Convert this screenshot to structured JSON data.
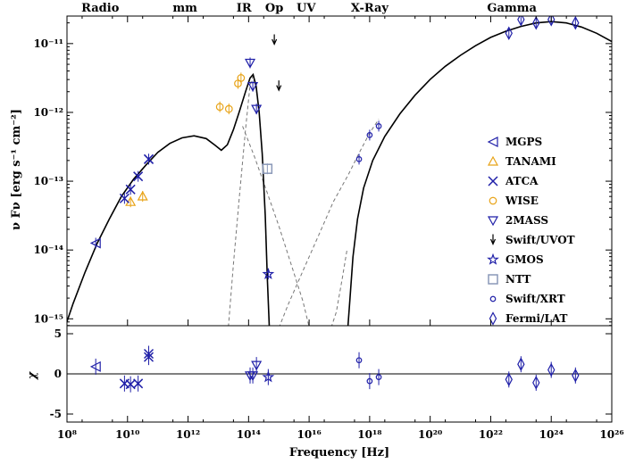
{
  "chart_data": {
    "type": "scatter",
    "title": "",
    "bands": [
      {
        "label": "Radio",
        "log_nu": 9.1
      },
      {
        "label": "mm",
        "log_nu": 11.9
      },
      {
        "label": "IR",
        "log_nu": 13.85
      },
      {
        "label": "Op",
        "log_nu": 14.85
      },
      {
        "label": "UV",
        "log_nu": 15.9
      },
      {
        "label": "X-Ray",
        "log_nu": 18.0
      },
      {
        "label": "Gamma",
        "log_nu": 22.7
      }
    ],
    "xlabel": "Frequency [Hz]",
    "x_scale": "log",
    "x_range": [
      8,
      26
    ],
    "x_ticks": [
      {
        "value": 8,
        "label": "10⁸"
      },
      {
        "value": 10,
        "label": "10¹⁰"
      },
      {
        "value": 12,
        "label": "10¹²"
      },
      {
        "value": 14,
        "label": "10¹⁴"
      },
      {
        "value": 16,
        "label": "10¹⁶"
      },
      {
        "value": 18,
        "label": "10¹⁸"
      },
      {
        "value": 20,
        "label": "10²⁰"
      },
      {
        "value": 22,
        "label": "10²²"
      },
      {
        "value": 24,
        "label": "10²⁴"
      },
      {
        "value": 26,
        "label": "10²⁶"
      }
    ],
    "top_panel": {
      "ylabel": "ν Fν [erg s⁻¹ cm⁻²]",
      "y_scale": "log",
      "y_range": [
        -15.1,
        -10.6
      ],
      "y_ticks": [
        {
          "value": -15,
          "label": "10⁻¹⁵"
        },
        {
          "value": -14,
          "label": "10⁻¹⁴"
        },
        {
          "value": -13,
          "label": "10⁻¹³"
        },
        {
          "value": -12,
          "label": "10⁻¹²"
        },
        {
          "value": -11,
          "label": "10⁻¹¹"
        }
      ],
      "legend_position": "right"
    },
    "bottom_panel": {
      "ylabel": "χ",
      "y_range": [
        -6,
        6
      ],
      "y_ticks": [
        {
          "value": 5,
          "label": "5"
        },
        {
          "value": 0,
          "label": "0"
        },
        {
          "value": -5,
          "label": "-5"
        }
      ]
    },
    "grid": false,
    "model_curves": {
      "total": [
        [
          7.8,
          -15.3
        ],
        [
          8.2,
          -14.78
        ],
        [
          8.6,
          -14.32
        ],
        [
          9.0,
          -13.9
        ],
        [
          9.4,
          -13.55
        ],
        [
          9.8,
          -13.22
        ],
        [
          10.2,
          -12.97
        ],
        [
          10.6,
          -12.77
        ],
        [
          11.0,
          -12.58
        ],
        [
          11.4,
          -12.45
        ],
        [
          11.8,
          -12.37
        ],
        [
          12.2,
          -12.34
        ],
        [
          12.6,
          -12.38
        ],
        [
          12.9,
          -12.48
        ],
        [
          13.1,
          -12.55
        ],
        [
          13.3,
          -12.47
        ],
        [
          13.5,
          -12.25
        ],
        [
          13.7,
          -11.98
        ],
        [
          13.9,
          -11.7
        ],
        [
          14.05,
          -11.5
        ],
        [
          14.15,
          -11.45
        ],
        [
          14.25,
          -11.62
        ],
        [
          14.35,
          -12.0
        ],
        [
          14.45,
          -12.6
        ],
        [
          14.55,
          -13.5
        ],
        [
          14.62,
          -14.4
        ],
        [
          14.7,
          -15.3
        ]
      ],
      "total_xray": [
        [
          17.25,
          -15.3
        ],
        [
          17.35,
          -14.7
        ],
        [
          17.45,
          -14.1
        ],
        [
          17.6,
          -13.55
        ],
        [
          17.8,
          -13.1
        ],
        [
          18.1,
          -12.7
        ],
        [
          18.5,
          -12.35
        ],
        [
          19.0,
          -12.02
        ],
        [
          19.5,
          -11.75
        ],
        [
          20.0,
          -11.52
        ],
        [
          20.5,
          -11.33
        ],
        [
          21.0,
          -11.17
        ],
        [
          21.5,
          -11.03
        ],
        [
          22.0,
          -10.91
        ],
        [
          22.5,
          -10.82
        ],
        [
          23.0,
          -10.75
        ],
        [
          23.5,
          -10.7
        ],
        [
          24.0,
          -10.68
        ],
        [
          24.5,
          -10.7
        ],
        [
          25.0,
          -10.76
        ],
        [
          25.5,
          -10.85
        ],
        [
          26.0,
          -10.97
        ]
      ],
      "components": [
        [
          [
            13.3,
            -15.3
          ],
          [
            13.5,
            -14.2
          ],
          [
            13.7,
            -13.2
          ],
          [
            13.9,
            -12.25
          ],
          [
            14.05,
            -11.6
          ],
          [
            14.15,
            -11.47
          ],
          [
            14.25,
            -11.65
          ],
          [
            14.35,
            -12.0
          ],
          [
            14.45,
            -12.6
          ],
          [
            14.55,
            -13.5
          ],
          [
            14.62,
            -14.4
          ],
          [
            14.7,
            -15.3
          ]
        ],
        [
          [
            13.8,
            -12.2
          ],
          [
            14.2,
            -12.65
          ],
          [
            14.6,
            -13.15
          ],
          [
            15.0,
            -13.65
          ],
          [
            15.4,
            -14.2
          ],
          [
            15.8,
            -14.75
          ],
          [
            16.1,
            -15.3
          ]
        ],
        [
          [
            14.85,
            -15.3
          ],
          [
            15.3,
            -14.8
          ],
          [
            15.8,
            -14.3
          ],
          [
            16.3,
            -13.8
          ],
          [
            16.8,
            -13.3
          ],
          [
            17.3,
            -12.9
          ],
          [
            17.7,
            -12.55
          ],
          [
            18.0,
            -12.3
          ],
          [
            18.3,
            -12.1
          ]
        ],
        [
          [
            16.6,
            -15.3
          ],
          [
            16.9,
            -14.9
          ],
          [
            17.1,
            -14.4
          ],
          [
            17.25,
            -14.0
          ]
        ]
      ]
    },
    "series": [
      {
        "name": "MGPS",
        "marker": "triangle-left",
        "color": "#1f1fa8",
        "points": [
          [
            8.95,
            -13.9,
            0.9
          ]
        ]
      },
      {
        "name": "TANAMI",
        "marker": "triangle-up",
        "color": "#e8a317",
        "points": [
          [
            10.1,
            -13.3
          ],
          [
            10.5,
            -13.22
          ]
        ]
      },
      {
        "name": "ATCA",
        "marker": "x",
        "color": "#1f1fa8",
        "points": [
          [
            9.9,
            -13.25,
            -1.2
          ],
          [
            10.1,
            -13.12,
            -1.3
          ],
          [
            10.35,
            -12.93,
            -1.2
          ],
          [
            10.7,
            -12.68,
            2.5
          ],
          [
            10.7,
            -12.68,
            2.1
          ]
        ]
      },
      {
        "name": "WISE",
        "marker": "circle",
        "color": "#e8a317",
        "points": [
          [
            13.05,
            -11.92
          ],
          [
            13.35,
            -11.95
          ],
          [
            13.65,
            -11.58
          ],
          [
            13.75,
            -11.5
          ]
        ]
      },
      {
        "name": "2MASS",
        "marker": "triangle-down",
        "color": "#1f1fa8",
        "points": [
          [
            14.14,
            -11.62,
            -0.2
          ],
          [
            14.26,
            -11.95,
            1.1
          ],
          [
            14.05,
            -11.28,
            -0.2
          ]
        ]
      },
      {
        "name": "Swift/UVOT",
        "marker": "arrow-down",
        "color": "#000000",
        "points": [
          [
            14.85,
            -10.95
          ],
          [
            15.0,
            -11.62
          ]
        ]
      },
      {
        "name": "GMOS",
        "marker": "star",
        "color": "#1f1fa8",
        "points": [
          [
            14.65,
            -14.35,
            -0.4
          ]
        ]
      },
      {
        "name": "NTT",
        "marker": "square",
        "color": "#8a98b8",
        "points": [
          [
            14.62,
            -12.82
          ]
        ]
      },
      {
        "name": "Swift/XRT",
        "marker": "circle-small",
        "color": "#1f1fa8",
        "points": [
          [
            17.65,
            -12.68,
            1.7
          ],
          [
            18.0,
            -12.33,
            -0.9
          ],
          [
            18.3,
            -12.2,
            -0.4
          ]
        ]
      },
      {
        "name": "Fermi/LAT",
        "marker": "diamond",
        "color": "#1f1fa8",
        "points": [
          [
            22.6,
            -10.85,
            -0.7
          ],
          [
            23.0,
            -10.65,
            1.2
          ],
          [
            23.5,
            -10.7,
            -1.1
          ],
          [
            24.0,
            -10.65,
            0.5
          ],
          [
            24.8,
            -10.7,
            -0.2
          ]
        ]
      }
    ]
  }
}
